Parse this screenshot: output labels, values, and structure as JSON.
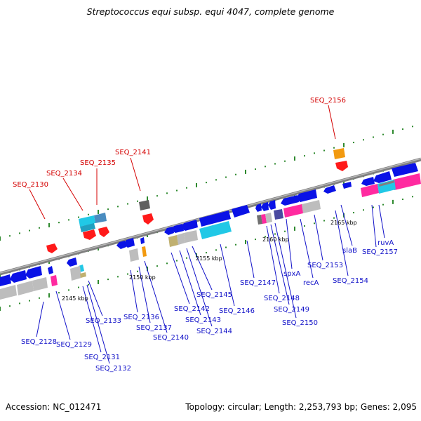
{
  "title": "Streptococcus equi subsp. equi 4047, complete genome",
  "footer": {
    "accession": "Accession: NC_012471",
    "summary": "Topology: circular; Length: 2,253,793 bp; Genes: 2,095"
  },
  "colors": {
    "backbone": "#8a8a8a",
    "cds": "#0a12e6",
    "rna": "#ff1a1a",
    "label_forward": "#1010c8",
    "label_highlight": "#d40000",
    "tick_dot": "#2f8a2f",
    "pink": "#ff2aa0",
    "cyan": "#21c8e6",
    "grey": "#bdbdbd",
    "orange": "#f29a10",
    "olive": "#c0b070",
    "dark": "#606060",
    "steel": "#4a8cc0"
  },
  "scale_labels": [
    "2145 kbp",
    "2150 kbp",
    "2155 kbp",
    "2160 kbp",
    "2165 kbp"
  ],
  "gene_labels_red": [
    "SEQ_2130",
    "SEQ_2134",
    "SEQ_2135",
    "SEQ_2141",
    "SEQ_2156"
  ],
  "gene_labels_blue": [
    "SEQ_2128",
    "SEQ_2129",
    "SEQ_2131",
    "SEQ_2132",
    "SEQ_2133",
    "SEQ_2136",
    "SEQ_2137",
    "SEQ_2140",
    "SEQ_2142",
    "SEQ_2143",
    "SEQ_2144",
    "SEQ_2145",
    "SEQ_2146",
    "SEQ_2147",
    "SEQ_2148",
    "SEQ_2149",
    "SEQ_2150",
    "spxA",
    "recA",
    "SEQ_2153",
    "SEQ_2154",
    "slaB",
    "ruvA",
    "SEQ_2157"
  ]
}
